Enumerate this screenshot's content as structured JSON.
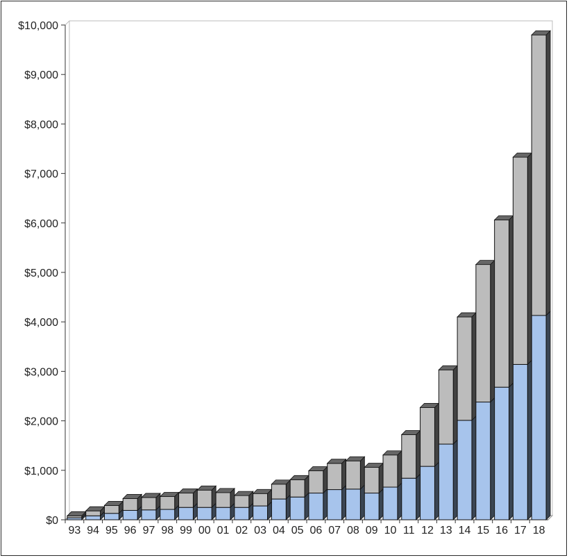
{
  "chart_data": {
    "type": "bar",
    "stacked": true,
    "three_d": true,
    "title": "",
    "xlabel": "",
    "ylabel": "",
    "categories": [
      "93",
      "94",
      "95",
      "96",
      "97",
      "98",
      "99",
      "00",
      "01",
      "02",
      "03",
      "04",
      "05",
      "06",
      "07",
      "08",
      "09",
      "10",
      "11",
      "12",
      "13",
      "14",
      "15",
      "16",
      "17",
      "18"
    ],
    "series": [
      {
        "color": "#a7c4ec",
        "values": [
          40,
          80,
          130,
          190,
          200,
          210,
          250,
          250,
          250,
          250,
          280,
          420,
          460,
          540,
          610,
          620,
          540,
          660,
          840,
          1080,
          1530,
          2010,
          2380,
          2680,
          3140,
          4130
        ]
      },
      {
        "color": "#bcbcbc",
        "values": [
          40,
          100,
          160,
          240,
          250,
          260,
          290,
          350,
          300,
          240,
          250,
          300,
          350,
          450,
          530,
          570,
          520,
          650,
          880,
          1190,
          1500,
          2090,
          2780,
          3380,
          4190,
          5670
        ]
      }
    ],
    "ylim": [
      0,
      10000
    ],
    "yticks": [
      0,
      1000,
      2000,
      3000,
      4000,
      5000,
      6000,
      7000,
      8000,
      9000,
      10000
    ],
    "ytick_labels": [
      "$0",
      "$1,000",
      "$2,000",
      "$3,000",
      "$4,000",
      "$5,000",
      "$6,000",
      "$7,000",
      "$8,000",
      "$9,000",
      "$10,000"
    ],
    "grid": false,
    "legend": "none"
  }
}
